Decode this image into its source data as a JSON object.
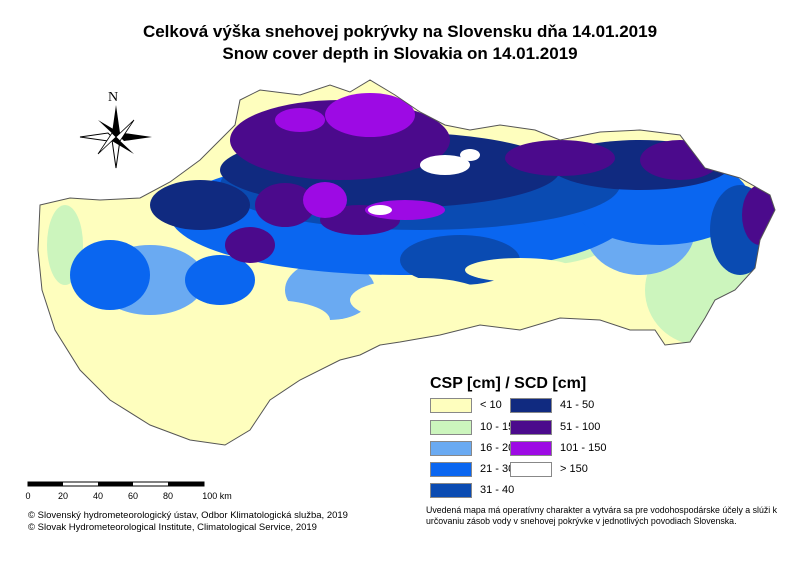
{
  "title_sk": "Celková výška snehovej pokrývky na Slovensku dňa 14.01.2019",
  "title_en": "Snow cover depth in Slovakia on 14.01.2019",
  "north_label": "N",
  "legend": {
    "title": "CSP [cm] / SCD [cm]",
    "classes": [
      {
        "label": "< 10",
        "color": "#fefebe"
      },
      {
        "label": "10 - 15",
        "color": "#ccf5bd"
      },
      {
        "label": "16 - 20",
        "color": "#6aaaf2"
      },
      {
        "label": "21 - 30",
        "color": "#0a66f0"
      },
      {
        "label": "31 - 40",
        "color": "#0a4bb2"
      },
      {
        "label": "41 - 50",
        "color": "#102a80"
      },
      {
        "label": "51 - 100",
        "color": "#4b0a8c"
      },
      {
        "label": "101 - 150",
        "color": "#9d0ae4"
      },
      {
        "label": "> 150",
        "color": "#ffffff"
      }
    ]
  },
  "scale_bar": {
    "labels": [
      "0",
      "20",
      "40",
      "60",
      "80",
      "100 km"
    ]
  },
  "credits": [
    "© Slovenský hydrometeorologický ústav, Odbor Klimatologická služba, 2019",
    "© Slovak Hydrometeorological Institute, Climatological Service, 2019"
  ],
  "note": "Uvedená mapa má operatívny charakter a vytvára sa pre vodohospodárske účely a slúži k určovaniu zásob vody v snehovej pokrývke v jednotlivých povodiach Slovenska."
}
